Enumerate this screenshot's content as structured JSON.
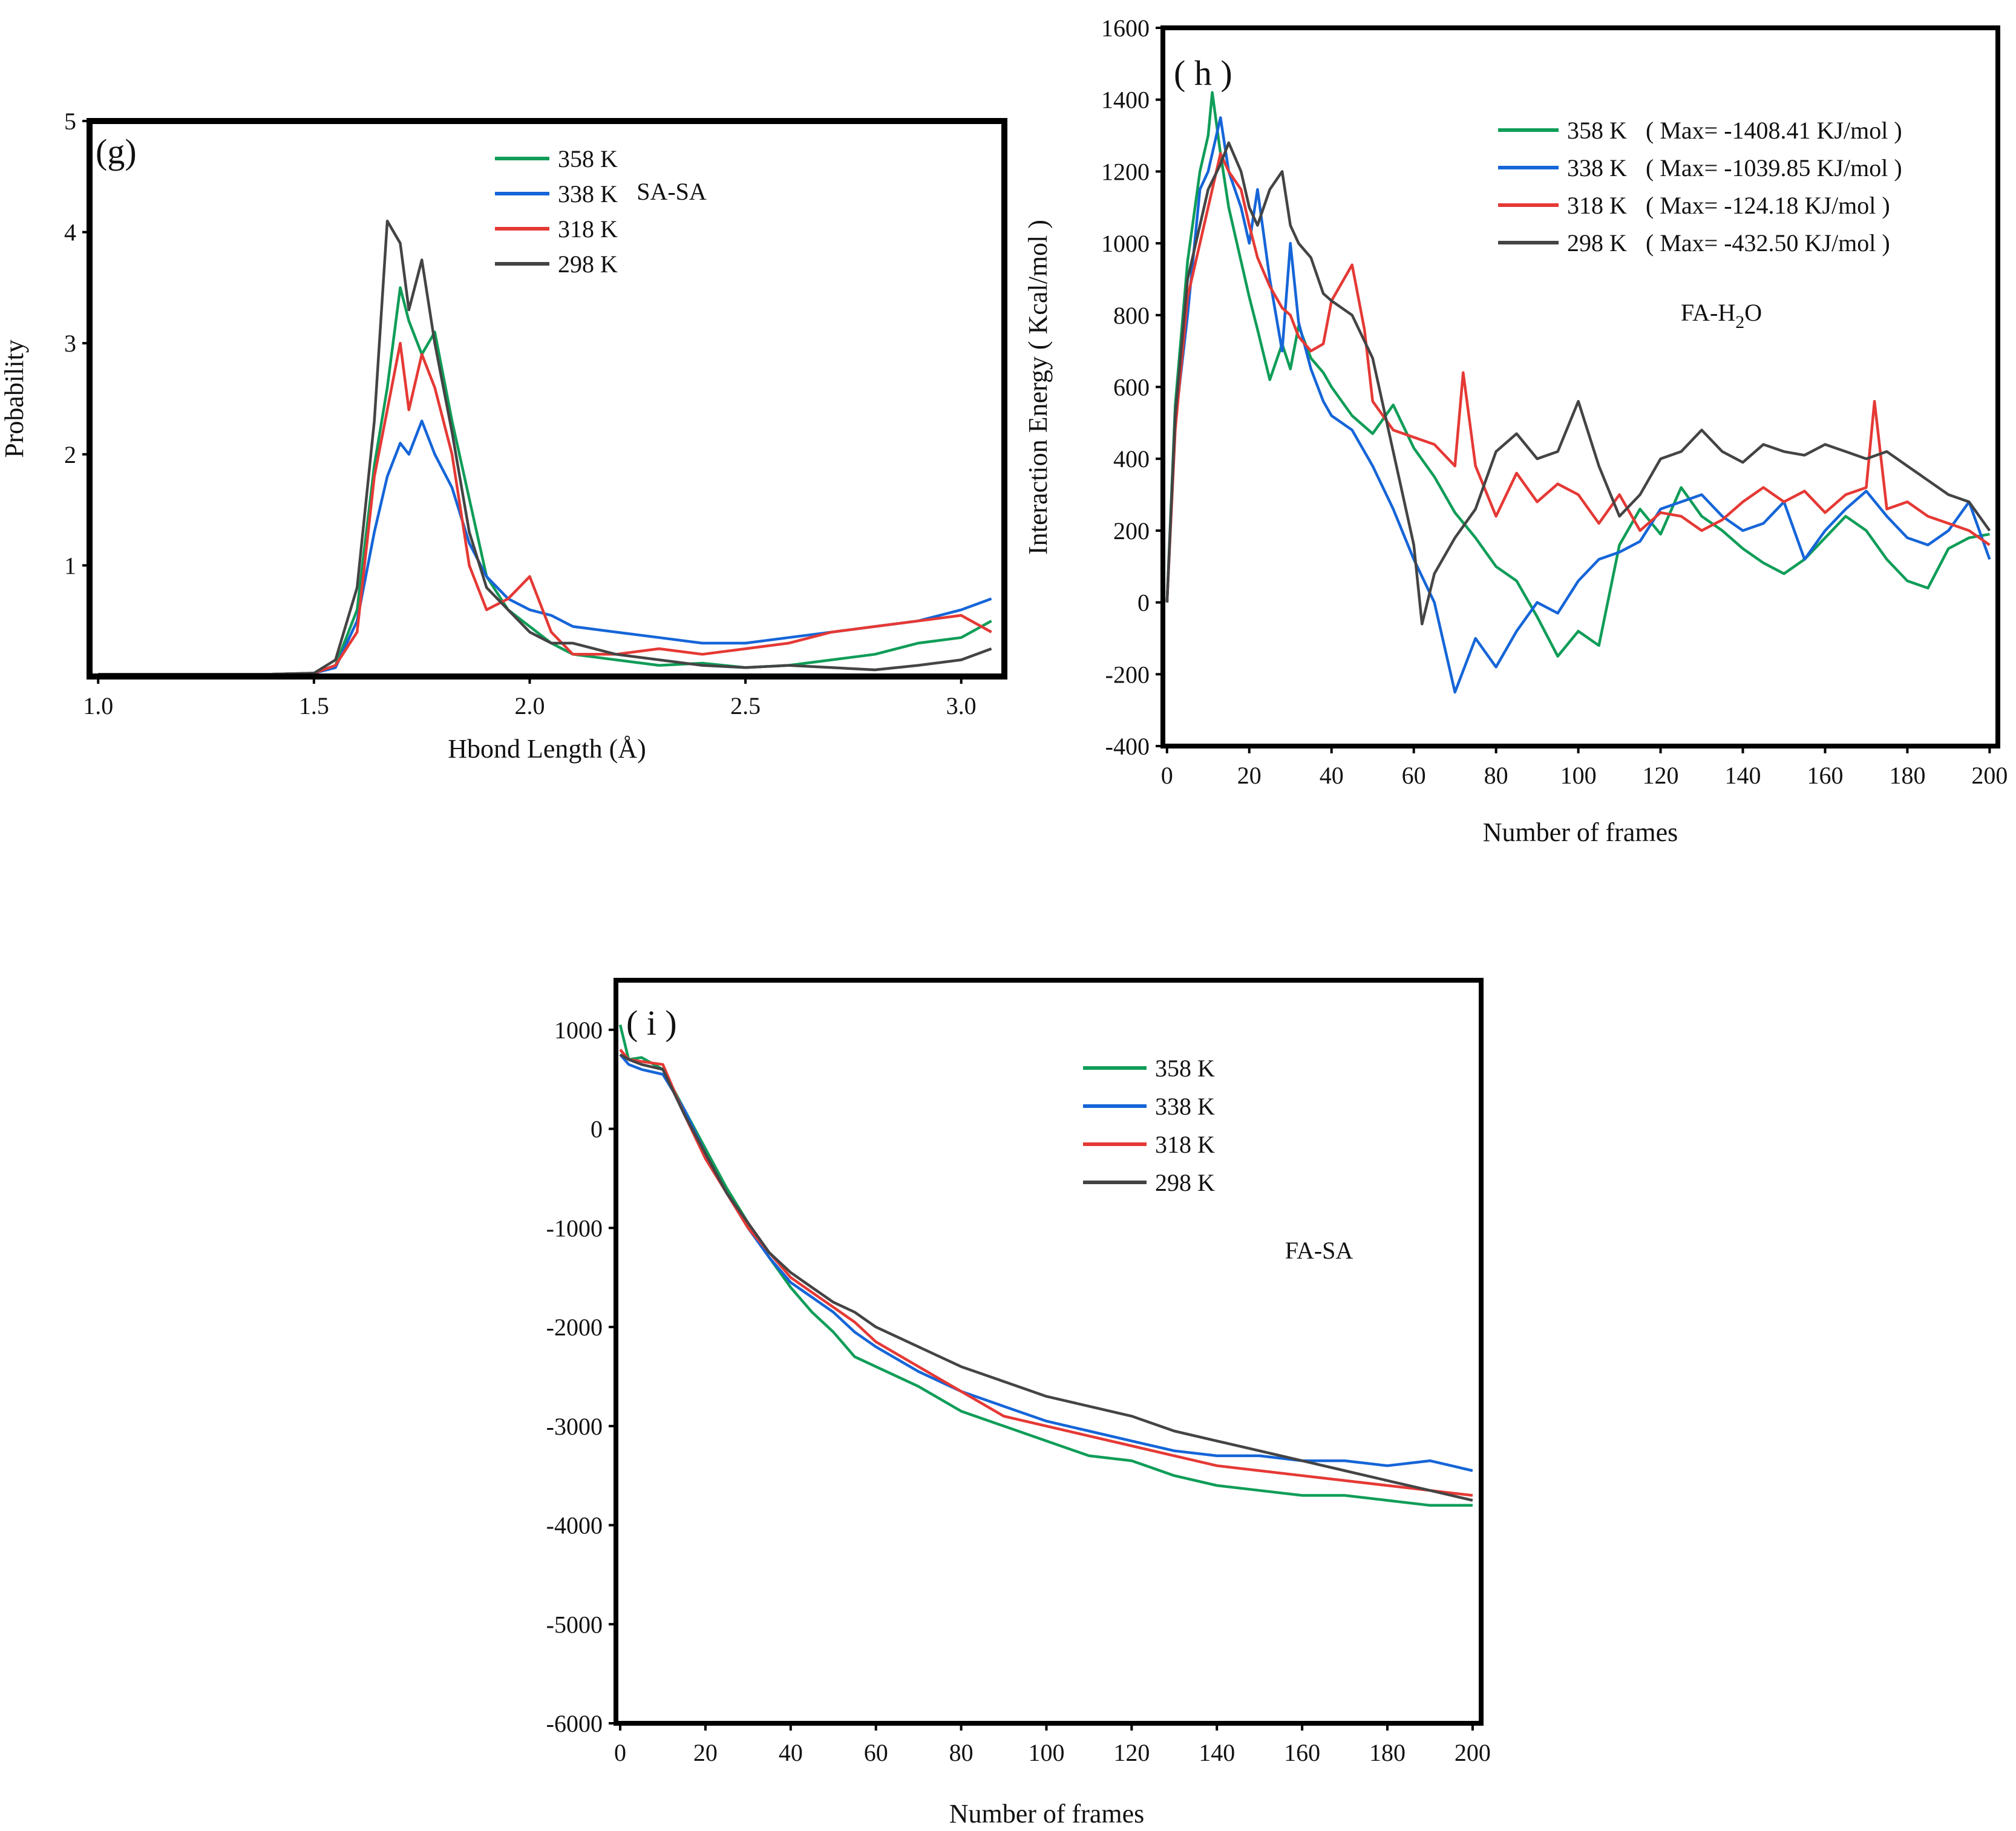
{
  "chart_data": [
    {
      "panel": "(g)",
      "type": "line",
      "title": "",
      "annotation": "SA-SA",
      "xlabel": "Hbond Length (Å)",
      "ylabel": "Probability",
      "xlim": [
        0.98,
        3.1
      ],
      "ylim": [
        0,
        5
      ],
      "xticks": [
        "1.0",
        "1.5",
        "2.0",
        "2.5",
        "3.0"
      ],
      "xtick_values": [
        1.0,
        1.5,
        2.0,
        2.5,
        3.0
      ],
      "yticks": [
        "1",
        "2",
        "3",
        "4",
        "5"
      ],
      "ytick_values": [
        1,
        2,
        3,
        4,
        5
      ],
      "series": [
        {
          "name": "358 K",
          "color": "#0f9d58",
          "x": [
            1.0,
            1.2,
            1.4,
            1.5,
            1.55,
            1.6,
            1.64,
            1.67,
            1.7,
            1.72,
            1.75,
            1.78,
            1.82,
            1.86,
            1.9,
            1.95,
            2.0,
            2.05,
            2.1,
            2.2,
            2.3,
            2.4,
            2.5,
            2.6,
            2.7,
            2.8,
            2.9,
            3.0,
            3.07
          ],
          "y": [
            0.02,
            0.02,
            0.02,
            0.03,
            0.1,
            0.6,
            1.9,
            2.6,
            3.5,
            3.2,
            2.9,
            3.1,
            2.3,
            1.6,
            0.9,
            0.6,
            0.45,
            0.3,
            0.2,
            0.15,
            0.1,
            0.12,
            0.08,
            0.1,
            0.15,
            0.2,
            0.3,
            0.35,
            0.5
          ]
        },
        {
          "name": "338 K",
          "color": "#1565d8",
          "x": [
            1.0,
            1.2,
            1.4,
            1.5,
            1.55,
            1.6,
            1.64,
            1.67,
            1.7,
            1.72,
            1.75,
            1.78,
            1.82,
            1.86,
            1.9,
            1.95,
            2.0,
            2.05,
            2.1,
            2.2,
            2.3,
            2.4,
            2.5,
            2.6,
            2.7,
            2.8,
            2.9,
            3.0,
            3.07
          ],
          "y": [
            0.02,
            0.02,
            0.02,
            0.03,
            0.08,
            0.5,
            1.3,
            1.8,
            2.1,
            2.0,
            2.3,
            2.0,
            1.7,
            1.2,
            0.9,
            0.7,
            0.6,
            0.55,
            0.45,
            0.4,
            0.35,
            0.3,
            0.3,
            0.35,
            0.4,
            0.45,
            0.5,
            0.6,
            0.7
          ]
        },
        {
          "name": "318 K",
          "color": "#e53935",
          "x": [
            1.0,
            1.2,
            1.4,
            1.5,
            1.55,
            1.6,
            1.64,
            1.67,
            1.7,
            1.72,
            1.75,
            1.78,
            1.82,
            1.86,
            1.9,
            1.95,
            2.0,
            2.05,
            2.1,
            2.2,
            2.3,
            2.4,
            2.5,
            2.6,
            2.7,
            2.8,
            2.9,
            3.0,
            3.07
          ],
          "y": [
            0.02,
            0.02,
            0.02,
            0.03,
            0.1,
            0.4,
            1.8,
            2.4,
            3.0,
            2.4,
            2.9,
            2.6,
            2.0,
            1.0,
            0.6,
            0.7,
            0.9,
            0.4,
            0.2,
            0.2,
            0.25,
            0.2,
            0.25,
            0.3,
            0.4,
            0.45,
            0.5,
            0.55,
            0.4
          ]
        },
        {
          "name": "298 K",
          "color": "#444444",
          "x": [
            1.0,
            1.2,
            1.4,
            1.5,
            1.55,
            1.6,
            1.64,
            1.67,
            1.7,
            1.72,
            1.75,
            1.78,
            1.82,
            1.86,
            1.9,
            1.95,
            2.0,
            2.05,
            2.1,
            2.2,
            2.3,
            2.4,
            2.5,
            2.6,
            2.7,
            2.8,
            2.9,
            3.0,
            3.07
          ],
          "y": [
            0.02,
            0.02,
            0.02,
            0.03,
            0.15,
            0.8,
            2.3,
            4.1,
            3.9,
            3.3,
            3.75,
            3.0,
            2.2,
            1.3,
            0.8,
            0.6,
            0.4,
            0.3,
            0.3,
            0.2,
            0.15,
            0.1,
            0.08,
            0.1,
            0.08,
            0.06,
            0.1,
            0.15,
            0.25
          ]
        }
      ]
    },
    {
      "panel": "( h )",
      "type": "line",
      "title": "",
      "annotation": "FA-H2O",
      "annotation_parts": {
        "prefix": "FA-H",
        "sub": "2",
        "suffix": "O"
      },
      "xlabel": "Number of frames",
      "ylabel": "Interaction Energy ( Kcal/mol )",
      "xlim": [
        -1,
        202
      ],
      "ylim": [
        -400,
        1600
      ],
      "xticks": [
        "0",
        "20",
        "40",
        "60",
        "80",
        "100",
        "120",
        "140",
        "160",
        "180",
        "200"
      ],
      "xtick_values": [
        0,
        20,
        40,
        60,
        80,
        100,
        120,
        140,
        160,
        180,
        200
      ],
      "yticks": [
        "-400",
        "-200",
        "0",
        "200",
        "400",
        "600",
        "800",
        "1000",
        "1200",
        "1400",
        "1600"
      ],
      "ytick_values": [
        -400,
        -200,
        0,
        200,
        400,
        600,
        800,
        1000,
        1200,
        1400,
        1600
      ],
      "series": [
        {
          "name": "358 K",
          "legend_note": "( Max= -1408.41 KJ/mol )",
          "color": "#0f9d58",
          "x": [
            0,
            2,
            5,
            8,
            10,
            11,
            13,
            15,
            18,
            20,
            22,
            25,
            28,
            30,
            32,
            35,
            38,
            40,
            45,
            50,
            55,
            60,
            65,
            70,
            75,
            80,
            85,
            90,
            95,
            100,
            105,
            110,
            115,
            120,
            125,
            130,
            135,
            140,
            145,
            150,
            155,
            160,
            165,
            170,
            175,
            180,
            185,
            190,
            195,
            200
          ],
          "y": [
            0,
            550,
            950,
            1200,
            1300,
            1420,
            1250,
            1100,
            950,
            850,
            760,
            620,
            720,
            650,
            770,
            680,
            640,
            600,
            520,
            470,
            550,
            430,
            350,
            250,
            180,
            100,
            60,
            -40,
            -150,
            -80,
            -120,
            160,
            260,
            190,
            320,
            240,
            200,
            150,
            110,
            80,
            120,
            180,
            240,
            200,
            120,
            60,
            40,
            150,
            180,
            190
          ]
        },
        {
          "name": "338 K",
          "legend_note": "( Max= -1039.85 KJ/mol )",
          "color": "#1565d8",
          "x": [
            0,
            2,
            5,
            8,
            10,
            13,
            15,
            18,
            20,
            22,
            25,
            28,
            30,
            32,
            35,
            38,
            40,
            45,
            50,
            55,
            60,
            65,
            70,
            75,
            80,
            85,
            90,
            95,
            100,
            105,
            110,
            115,
            120,
            125,
            130,
            135,
            140,
            145,
            150,
            155,
            160,
            165,
            170,
            175,
            180,
            185,
            190,
            195,
            200
          ],
          "y": [
            0,
            500,
            800,
            1150,
            1200,
            1350,
            1200,
            1100,
            1000,
            1150,
            900,
            700,
            1000,
            780,
            650,
            560,
            520,
            480,
            380,
            260,
            120,
            0,
            -250,
            -100,
            -180,
            -80,
            0,
            -30,
            60,
            120,
            140,
            170,
            260,
            280,
            300,
            240,
            200,
            220,
            280,
            120,
            200,
            260,
            310,
            240,
            180,
            160,
            200,
            280,
            120
          ]
        },
        {
          "name": "318 K",
          "legend_note": "( Max= -124.18 KJ/mol )",
          "color": "#e53935",
          "x": [
            0,
            2,
            5,
            8,
            10,
            13,
            15,
            18,
            20,
            22,
            25,
            28,
            30,
            32,
            35,
            38,
            40,
            45,
            48,
            50,
            55,
            60,
            65,
            70,
            72,
            75,
            80,
            85,
            90,
            95,
            100,
            105,
            110,
            115,
            120,
            125,
            130,
            135,
            140,
            145,
            150,
            155,
            160,
            165,
            170,
            172,
            175,
            180,
            185,
            190,
            195,
            200
          ],
          "y": [
            0,
            480,
            850,
            1000,
            1100,
            1250,
            1200,
            1150,
            1050,
            960,
            880,
            820,
            800,
            740,
            700,
            720,
            840,
            940,
            760,
            560,
            480,
            460,
            440,
            380,
            640,
            380,
            240,
            360,
            280,
            330,
            300,
            220,
            300,
            200,
            250,
            240,
            200,
            230,
            280,
            320,
            280,
            310,
            250,
            300,
            320,
            560,
            260,
            280,
            240,
            220,
            200,
            160
          ]
        },
        {
          "name": "298 K",
          "legend_note": "( Max= -432.50 KJ/mol )",
          "color": "#444444",
          "x": [
            0,
            2,
            5,
            8,
            10,
            13,
            15,
            18,
            20,
            22,
            25,
            28,
            30,
            32,
            35,
            38,
            40,
            45,
            50,
            55,
            60,
            62,
            65,
            70,
            75,
            80,
            85,
            90,
            95,
            100,
            105,
            110,
            115,
            120,
            125,
            130,
            135,
            140,
            145,
            150,
            155,
            160,
            165,
            170,
            175,
            180,
            185,
            190,
            195,
            200
          ],
          "y": [
            0,
            520,
            900,
            1050,
            1150,
            1220,
            1280,
            1200,
            1100,
            1050,
            1150,
            1200,
            1050,
            1000,
            960,
            860,
            840,
            800,
            680,
            420,
            160,
            -60,
            80,
            180,
            260,
            420,
            470,
            400,
            420,
            560,
            380,
            240,
            300,
            400,
            420,
            480,
            420,
            390,
            440,
            420,
            410,
            440,
            420,
            400,
            420,
            380,
            340,
            300,
            280,
            200
          ]
        }
      ]
    },
    {
      "panel": "( i )",
      "type": "line",
      "title": "",
      "annotation": "FA-SA",
      "xlabel": "Number of frames",
      "ylabel": "",
      "xlim": [
        -1,
        202
      ],
      "ylim": [
        -6000,
        1500
      ],
      "xticks": [
        "0",
        "20",
        "40",
        "60",
        "80",
        "100",
        "120",
        "140",
        "160",
        "180",
        "200"
      ],
      "xtick_values": [
        0,
        20,
        40,
        60,
        80,
        100,
        120,
        140,
        160,
        180,
        200
      ],
      "yticks": [
        "-6000",
        "-5000",
        "-4000",
        "-3000",
        "-2000",
        "-1000",
        "0",
        "1000"
      ],
      "ytick_values": [
        -6000,
        -5000,
        -4000,
        -3000,
        -2000,
        -1000,
        0,
        1000
      ],
      "series": [
        {
          "name": "358 K",
          "color": "#0f9d58",
          "x": [
            0,
            2,
            5,
            10,
            15,
            20,
            25,
            30,
            35,
            40,
            45,
            50,
            55,
            60,
            70,
            80,
            90,
            100,
            110,
            120,
            130,
            140,
            150,
            160,
            170,
            180,
            190,
            200
          ],
          "y": [
            1050,
            700,
            720,
            600,
            200,
            -200,
            -600,
            -950,
            -1300,
            -1600,
            -1850,
            -2050,
            -2300,
            -2400,
            -2600,
            -2850,
            -3000,
            -3150,
            -3300,
            -3350,
            -3500,
            -3600,
            -3650,
            -3700,
            -3700,
            -3750,
            -3800,
            -3800
          ]
        },
        {
          "name": "338 K",
          "color": "#1565d8",
          "x": [
            0,
            2,
            5,
            10,
            15,
            20,
            25,
            30,
            35,
            40,
            45,
            50,
            55,
            60,
            70,
            80,
            90,
            100,
            110,
            120,
            130,
            140,
            150,
            160,
            170,
            180,
            190,
            200
          ],
          "y": [
            750,
            650,
            600,
            550,
            200,
            -250,
            -650,
            -1000,
            -1300,
            -1550,
            -1700,
            -1850,
            -2050,
            -2200,
            -2450,
            -2650,
            -2800,
            -2950,
            -3050,
            -3150,
            -3250,
            -3300,
            -3300,
            -3350,
            -3350,
            -3400,
            -3350,
            -3450
          ]
        },
        {
          "name": "318 K",
          "color": "#e53935",
          "x": [
            0,
            2,
            5,
            10,
            15,
            20,
            25,
            30,
            35,
            40,
            45,
            50,
            55,
            60,
            70,
            80,
            90,
            100,
            110,
            120,
            130,
            140,
            150,
            160,
            170,
            180,
            190,
            200
          ],
          "y": [
            800,
            700,
            680,
            650,
            150,
            -300,
            -650,
            -1000,
            -1250,
            -1500,
            -1650,
            -1800,
            -1950,
            -2150,
            -2400,
            -2650,
            -2900,
            -3000,
            -3100,
            -3200,
            -3300,
            -3400,
            -3450,
            -3500,
            -3550,
            -3600,
            -3650,
            -3700
          ]
        },
        {
          "name": "298 K",
          "color": "#444444",
          "x": [
            0,
            2,
            5,
            10,
            15,
            20,
            25,
            30,
            35,
            40,
            45,
            50,
            55,
            60,
            70,
            80,
            90,
            100,
            110,
            120,
            130,
            140,
            150,
            160,
            170,
            180,
            190,
            200
          ],
          "y": [
            750,
            700,
            650,
            600,
            150,
            -250,
            -650,
            -950,
            -1250,
            -1450,
            -1600,
            -1750,
            -1850,
            -2000,
            -2200,
            -2400,
            -2550,
            -2700,
            -2800,
            -2900,
            -3050,
            -3150,
            -3250,
            -3350,
            -3450,
            -3550,
            -3650,
            -3750
          ]
        }
      ]
    }
  ]
}
